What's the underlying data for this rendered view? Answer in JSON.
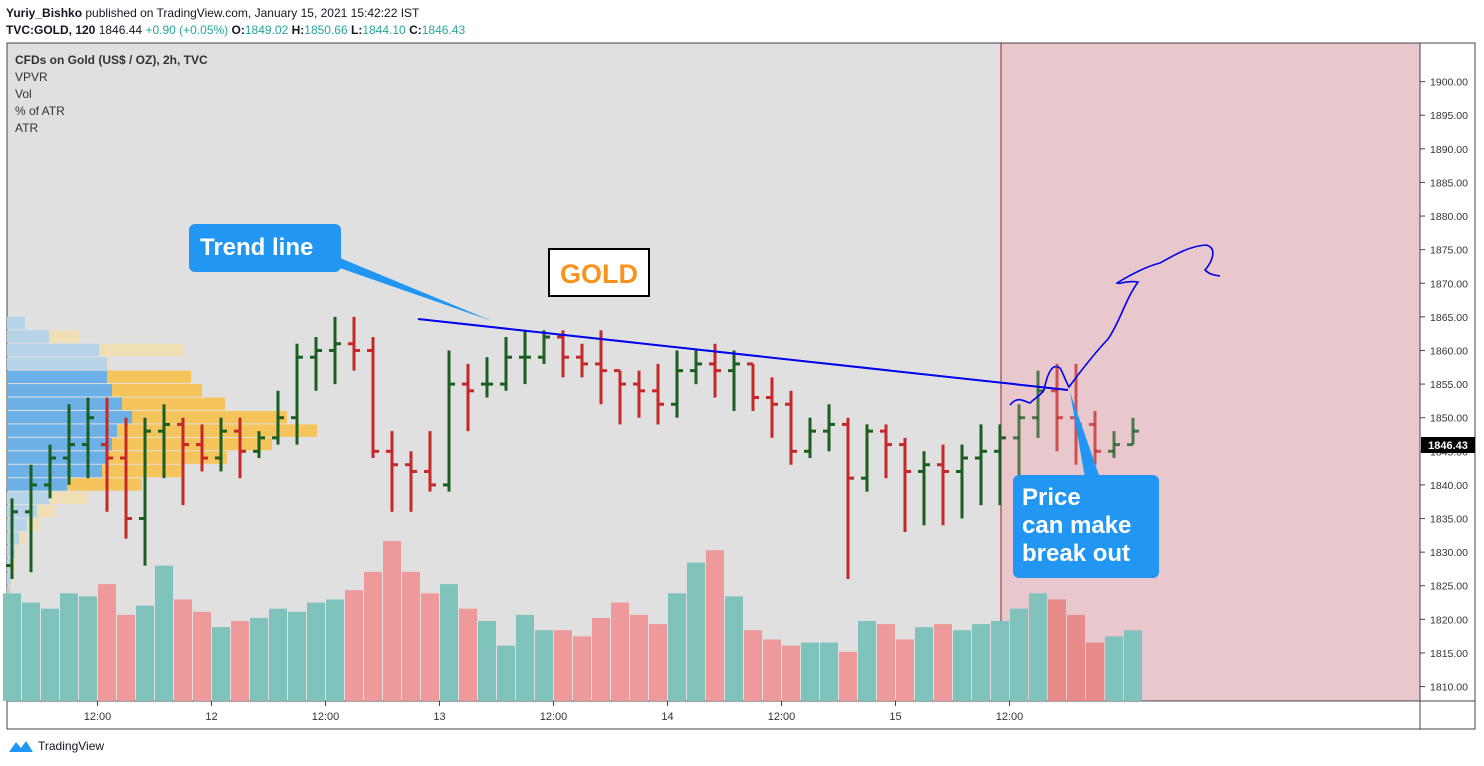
{
  "header": {
    "author": "Yuriy_Bishko",
    "published_text": "published on TradingView.com, January 15, 2021 15:42:22 IST",
    "symbol": "TVC:GOLD, 120",
    "last": "1846.44",
    "change": "+0.90 (+0.05%)",
    "o_label": "O:",
    "o_val": "1849.02",
    "h_label": "H:",
    "h_val": "1850.66",
    "l_label": "L:",
    "l_val": "1844.10",
    "c_label": "C:",
    "c_val": "1846.43"
  },
  "legend": [
    "CFDs on Gold (US$ / OZ), 2h, TVC",
    "VPVR",
    "Vol",
    "% of ATR",
    "ATR"
  ],
  "annotations": {
    "trend_callout": "Trend line",
    "gold_label": "GOLD",
    "price_callout": [
      "Price",
      "can make",
      "break out"
    ]
  },
  "price_tag": "1846.43",
  "footer": {
    "brand": "TradingView"
  },
  "colors": {
    "up": "#1b5e20",
    "down": "#c62828",
    "vol_up": "#80c3bd",
    "vol_down": "#ef9a9a",
    "bg": "#e0e0e0",
    "future_bg": "#e8c8cc",
    "trend": "#0000ee",
    "callout": "#2196f3",
    "vp_blue": "#6bb0e6",
    "vp_orange": "#f5c55c"
  },
  "chart_data": {
    "type": "ohlc",
    "title": "CFDs on Gold (US$ / OZ), 2h, TVC",
    "ylim": [
      1808,
      1905
    ],
    "y_ticks": [
      "1810.00",
      "1815.00",
      "1820.00",
      "1825.00",
      "1830.00",
      "1835.00",
      "1840.00",
      "1845.00",
      "1850.00",
      "1855.00",
      "1860.00",
      "1865.00",
      "1870.00",
      "1875.00",
      "1880.00",
      "1885.00",
      "1890.00",
      "1895.00",
      "1900.00"
    ],
    "x_ticks": [
      {
        "label": "12:00",
        "bar": 4.5
      },
      {
        "label": "12",
        "bar": 10.5
      },
      {
        "label": "12:00",
        "bar": 16.5
      },
      {
        "label": "13",
        "bar": 22.5
      },
      {
        "label": "12:00",
        "bar": 28.5
      },
      {
        "label": "14",
        "bar": 34.5
      },
      {
        "label": "12:00",
        "bar": 40.5
      },
      {
        "label": "15",
        "bar": 46.5
      },
      {
        "label": "12:00",
        "bar": 52.5
      }
    ],
    "bars": [
      [
        1828,
        1838,
        1826,
        1836,
        350
      ],
      [
        1836,
        1843,
        1827,
        1840,
        320
      ],
      [
        1840,
        1846,
        1838,
        1844,
        300
      ],
      [
        1844,
        1852,
        1840,
        1846,
        350
      ],
      [
        1846,
        1853,
        1841,
        1850,
        340
      ],
      [
        1846,
        1853,
        1836,
        1844,
        380
      ],
      [
        1844,
        1850,
        1832,
        1835,
        280
      ],
      [
        1835,
        1850,
        1828,
        1848,
        310
      ],
      [
        1848,
        1852,
        1841,
        1849,
        440
      ],
      [
        1849,
        1850,
        1837,
        1846,
        330
      ],
      [
        1846,
        1849,
        1842,
        1844,
        290
      ],
      [
        1844,
        1850,
        1842,
        1848,
        240
      ],
      [
        1848,
        1850,
        1841,
        1845,
        260
      ],
      [
        1845,
        1848,
        1844,
        1847,
        270
      ],
      [
        1847,
        1854,
        1846,
        1850,
        300
      ],
      [
        1850,
        1861,
        1846,
        1859,
        290
      ],
      [
        1859,
        1862,
        1854,
        1860,
        320
      ],
      [
        1860,
        1865,
        1855,
        1861,
        330
      ],
      [
        1861,
        1865,
        1857,
        1860,
        360
      ],
      [
        1860,
        1862,
        1844,
        1845,
        420
      ],
      [
        1845,
        1848,
        1836,
        1843,
        520
      ],
      [
        1843,
        1845,
        1836,
        1842,
        420
      ],
      [
        1842,
        1848,
        1839,
        1840,
        350
      ],
      [
        1840,
        1860,
        1839,
        1855,
        380
      ],
      [
        1855,
        1858,
        1848,
        1854,
        300
      ],
      [
        1855,
        1859,
        1853,
        1855,
        260
      ],
      [
        1855,
        1862,
        1854,
        1859,
        180
      ],
      [
        1859,
        1863,
        1855,
        1859,
        280
      ],
      [
        1859,
        1863,
        1858,
        1862,
        230
      ],
      [
        1862,
        1863,
        1856,
        1859,
        230
      ],
      [
        1859,
        1861,
        1856,
        1858,
        210
      ],
      [
        1858,
        1863,
        1852,
        1857,
        270
      ],
      [
        1857,
        1857,
        1849,
        1855,
        320
      ],
      [
        1855,
        1857,
        1850,
        1854,
        280
      ],
      [
        1854,
        1858,
        1849,
        1852,
        250
      ],
      [
        1852,
        1860,
        1850,
        1857,
        350
      ],
      [
        1857,
        1860,
        1855,
        1858,
        450
      ],
      [
        1858,
        1861,
        1853,
        1857,
        490
      ],
      [
        1857,
        1860,
        1851,
        1858,
        340
      ],
      [
        1858,
        1858,
        1851,
        1853,
        230
      ],
      [
        1853,
        1856,
        1847,
        1852,
        200
      ],
      [
        1852,
        1854,
        1843,
        1845,
        180
      ],
      [
        1845,
        1850,
        1844,
        1848,
        190
      ],
      [
        1848,
        1852,
        1845,
        1849,
        190
      ],
      [
        1849,
        1850,
        1826,
        1841,
        160
      ],
      [
        1841,
        1849,
        1839,
        1848,
        260
      ],
      [
        1848,
        1849,
        1841,
        1846,
        250
      ],
      [
        1846,
        1847,
        1833,
        1842,
        200
      ],
      [
        1842,
        1845,
        1834,
        1843,
        240
      ],
      [
        1843,
        1846,
        1834,
        1842,
        250
      ],
      [
        1842,
        1846,
        1835,
        1844,
        230
      ],
      [
        1844,
        1849,
        1837,
        1845,
        250
      ],
      [
        1845,
        1849,
        1837,
        1847,
        260
      ],
      [
        1847,
        1852,
        1840,
        1850,
        300
      ],
      [
        1850,
        1857,
        1847,
        1854,
        350
      ],
      [
        1854,
        1858,
        1845,
        1850,
        330
      ],
      [
        1850,
        1858,
        1843,
        1849,
        280
      ],
      [
        1849,
        1851,
        1843,
        1845,
        190
      ],
      [
        1845,
        1848,
        1844,
        1846,
        210
      ],
      [
        1846,
        1850,
        1846,
        1848,
        230
      ]
    ],
    "volume_max": 520,
    "volume_profile_note": "VPVR histogram on left"
  }
}
